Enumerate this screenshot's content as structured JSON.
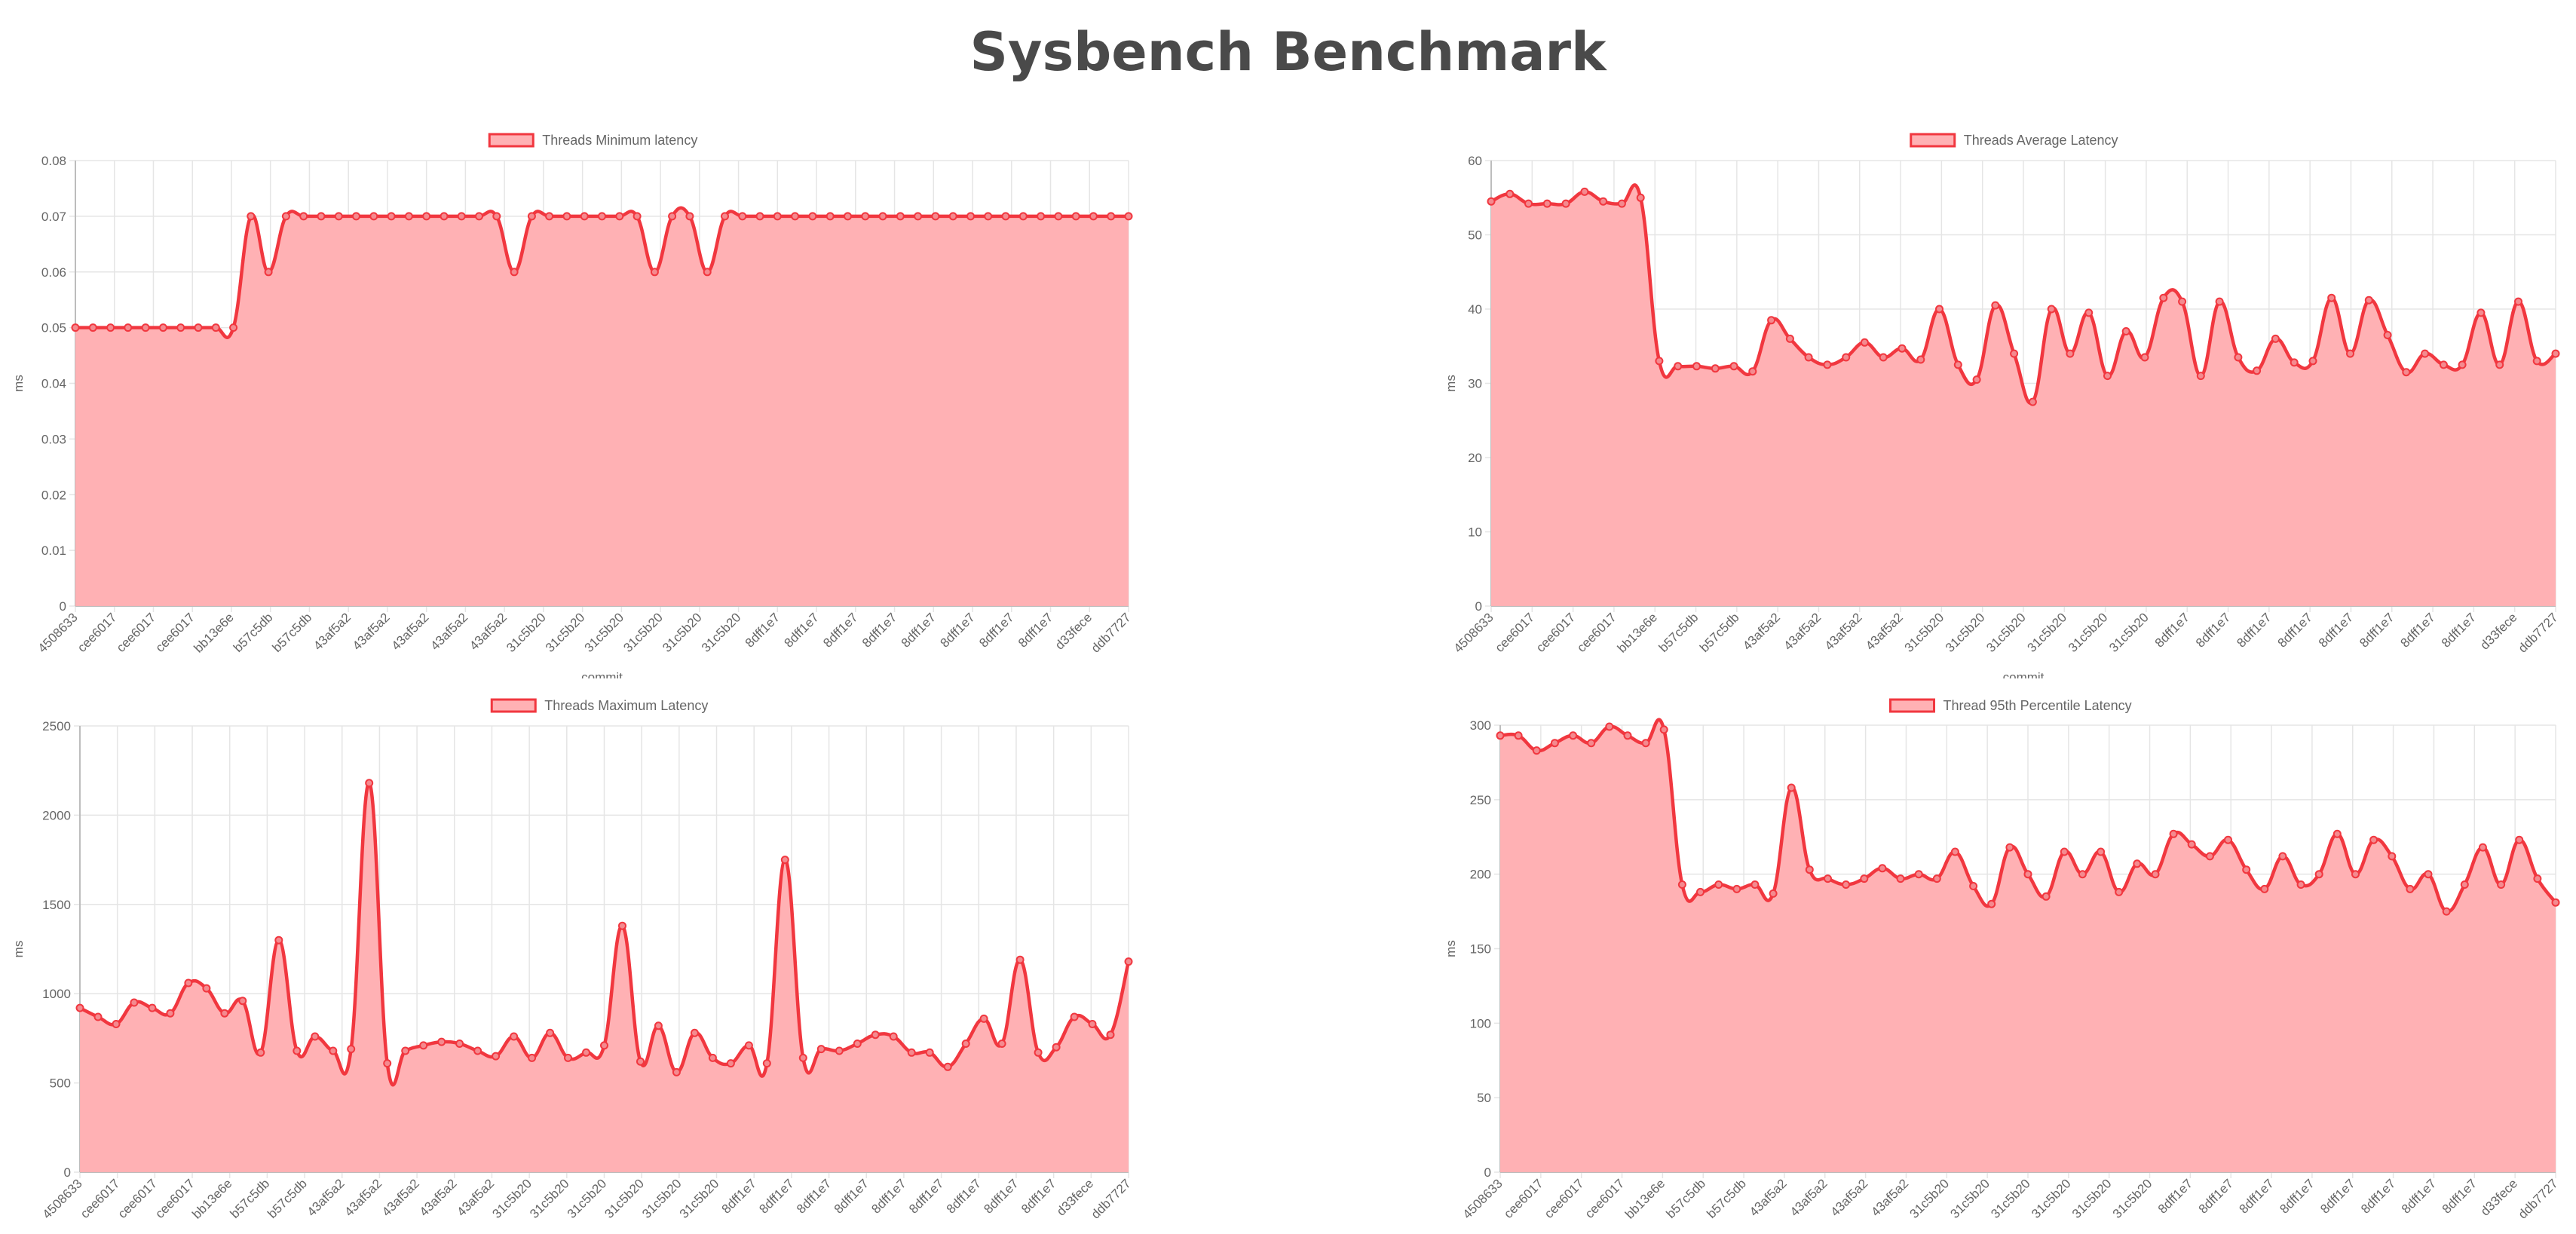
{
  "page": {
    "title": "Sysbench Benchmark"
  },
  "style": {
    "line_color": "#f1373f",
    "fill_color": "#ffb1b4",
    "grid_color": "#e5e5e5",
    "text_color": "#666666",
    "title_color": "#4a4a4a"
  },
  "chart_data": [
    {
      "type": "area",
      "legend": "Threads Minimum latency",
      "legend_position": "top",
      "ylabel": "ms",
      "xlabel": "commit",
      "ylim": [
        0,
        0.08
      ],
      "yticks": [
        0,
        0.01,
        0.02,
        0.03,
        0.04,
        0.05,
        0.06,
        0.07,
        0.08
      ],
      "grid": true,
      "x_tick_labels": [
        "4508633",
        "cee6017",
        "cee6017",
        "cee6017",
        "bb13e6e",
        "b57c5db",
        "b57c5db",
        "43af5a2",
        "43af5a2",
        "43af5a2",
        "43af5a2",
        "43af5a2",
        "31c5b20",
        "31c5b20",
        "31c5b20",
        "31c5b20",
        "31c5b20",
        "31c5b20",
        "8dff1e7",
        "8dff1e7",
        "8dff1e7",
        "8dff1e7",
        "8dff1e7",
        "8dff1e7",
        "8dff1e7",
        "8dff1e7",
        "d33fece",
        "ddb7727"
      ],
      "values": [
        0.05,
        0.05,
        0.05,
        0.05,
        0.05,
        0.05,
        0.05,
        0.05,
        0.05,
        0.05,
        0.07,
        0.06,
        0.07,
        0.07,
        0.07,
        0.07,
        0.07,
        0.07,
        0.07,
        0.07,
        0.07,
        0.07,
        0.07,
        0.07,
        0.07,
        0.06,
        0.07,
        0.07,
        0.07,
        0.07,
        0.07,
        0.07,
        0.07,
        0.06,
        0.07,
        0.07,
        0.06,
        0.07,
        0.07,
        0.07,
        0.07,
        0.07,
        0.07,
        0.07,
        0.07,
        0.07,
        0.07,
        0.07,
        0.07,
        0.07,
        0.07,
        0.07,
        0.07,
        0.07,
        0.07,
        0.07,
        0.07,
        0.07,
        0.07,
        0.07,
        0.07
      ]
    },
    {
      "type": "area",
      "legend": "Threads Average Latency",
      "legend_position": "top",
      "ylabel": "ms",
      "xlabel": "commit",
      "ylim": [
        0,
        60
      ],
      "yticks": [
        0,
        10,
        20,
        30,
        40,
        50,
        60
      ],
      "grid": true,
      "x_tick_labels": [
        "4508633",
        "cee6017",
        "cee6017",
        "cee6017",
        "bb13e6e",
        "b57c5db",
        "b57c5db",
        "43af5a2",
        "43af5a2",
        "43af5a2",
        "43af5a2",
        "31c5b20",
        "31c5b20",
        "31c5b20",
        "31c5b20",
        "31c5b20",
        "31c5b20",
        "8dff1e7",
        "8dff1e7",
        "8dff1e7",
        "8dff1e7",
        "8dff1e7",
        "8dff1e7",
        "8dff1e7",
        "8dff1e7",
        "d33fece",
        "ddb7727"
      ],
      "values": [
        54.5,
        55.5,
        54.2,
        54.2,
        54.2,
        55.8,
        54.5,
        54.2,
        55,
        33,
        32.3,
        32.3,
        32,
        32.3,
        31.6,
        38.5,
        36,
        33.5,
        32.5,
        33.5,
        35.5,
        33.5,
        34.7,
        33.2,
        40,
        32.5,
        30.5,
        40.5,
        34,
        27.5,
        40,
        34,
        39.5,
        31,
        37,
        33.5,
        41.5,
        41,
        31,
        41,
        33.5,
        31.7,
        36,
        32.8,
        33,
        41.5,
        34,
        41.2,
        36.5,
        31.5,
        34,
        32.5,
        32.5,
        39.5,
        32.5,
        41,
        33,
        34
      ]
    },
    {
      "type": "area",
      "legend": "Threads Maximum Latency",
      "legend_position": "top",
      "ylabel": "ms",
      "xlabel": "",
      "ylim": [
        0,
        2500
      ],
      "yticks": [
        0,
        500,
        1000,
        1500,
        2000,
        2500
      ],
      "grid": true,
      "x_tick_labels": [
        "4508633",
        "cee6017",
        "cee6017",
        "cee6017",
        "bb13e6e",
        "b57c5db",
        "b57c5db",
        "43af5a2",
        "43af5a2",
        "43af5a2",
        "43af5a2",
        "43af5a2",
        "31c5b20",
        "31c5b20",
        "31c5b20",
        "31c5b20",
        "31c5b20",
        "31c5b20",
        "8dff1e7",
        "8dff1e7",
        "8dff1e7",
        "8dff1e7",
        "8dff1e7",
        "8dff1e7",
        "8dff1e7",
        "8dff1e7",
        "8dff1e7",
        "d33fece",
        "ddb7727"
      ],
      "values": [
        920,
        870,
        830,
        950,
        920,
        890,
        1060,
        1030,
        890,
        960,
        670,
        1300,
        680,
        760,
        680,
        690,
        2180,
        610,
        680,
        710,
        730,
        720,
        680,
        650,
        760,
        640,
        780,
        640,
        670,
        710,
        1380,
        620,
        820,
        560,
        780,
        640,
        610,
        710,
        610,
        1750,
        640,
        690,
        680,
        720,
        770,
        760,
        670,
        670,
        590,
        720,
        860,
        720,
        1190,
        670,
        700,
        870,
        830,
        770,
        1180
      ]
    },
    {
      "type": "area",
      "legend": "Thread 95th Percentile Latency",
      "legend_position": "top",
      "ylabel": "ms",
      "xlabel": "",
      "ylim": [
        0,
        300
      ],
      "yticks": [
        0,
        50,
        100,
        150,
        200,
        250,
        300
      ],
      "grid": true,
      "x_tick_labels": [
        "4508633",
        "cee6017",
        "cee6017",
        "cee6017",
        "bb13e6e",
        "b57c5db",
        "b57c5db",
        "43af5a2",
        "43af5a2",
        "43af5a2",
        "43af5a2",
        "31c5b20",
        "31c5b20",
        "31c5b20",
        "31c5b20",
        "31c5b20",
        "31c5b20",
        "8dff1e7",
        "8dff1e7",
        "8dff1e7",
        "8dff1e7",
        "8dff1e7",
        "8dff1e7",
        "8dff1e7",
        "8dff1e7",
        "d33fece",
        "ddb7727"
      ],
      "values": [
        293,
        293,
        283,
        288,
        293,
        288,
        299,
        293,
        288,
        297,
        193,
        188,
        193,
        190,
        193,
        187,
        258,
        203,
        197,
        193,
        197,
        204,
        197,
        200,
        197,
        215,
        192,
        180,
        218,
        200,
        185,
        215,
        200,
        215,
        188,
        207,
        200,
        227,
        220,
        212,
        223,
        203,
        190,
        212,
        193,
        200,
        227,
        200,
        223,
        212,
        190,
        200,
        175,
        193,
        218,
        193,
        223,
        197,
        181
      ]
    }
  ]
}
